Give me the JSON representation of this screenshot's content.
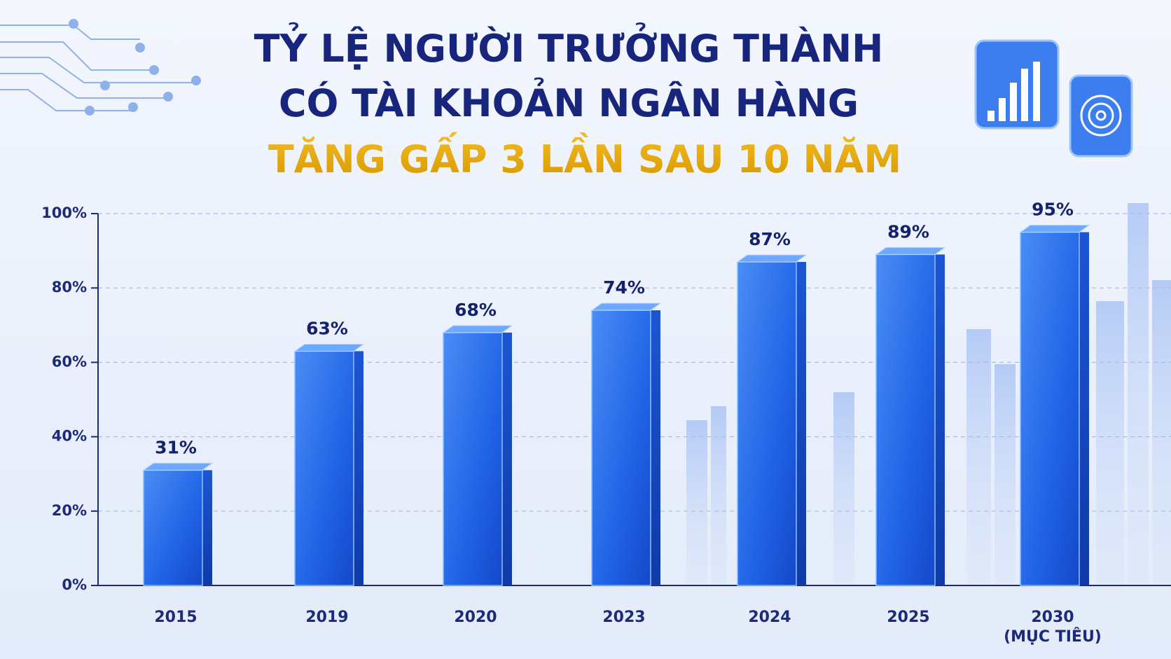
{
  "chart_data": {
    "type": "bar",
    "title": [
      "TỶ LỆ NGƯỜI TRƯỞNG THÀNH",
      "CÓ TÀI KHOẢN NGÂN HÀNG"
    ],
    "subtitle": "TĂNG GẤP 3 LẦN SAU 10 NĂM",
    "categories": [
      "2015",
      "2019",
      "2020",
      "2023",
      "2024",
      "2025",
      "2030\n(MỤC TIÊU)"
    ],
    "values": [
      31,
      63,
      68,
      74,
      87,
      89,
      95
    ],
    "value_labels": [
      "31%",
      "63%",
      "68%",
      "74%",
      "87%",
      "89%",
      "95%"
    ],
    "color": "#2163e6",
    "ylim": [
      0,
      100
    ],
    "yticks": [
      {
        "value": 0,
        "label": "0%"
      },
      {
        "value": 20,
        "label": "20%"
      },
      {
        "value": 40,
        "label": "40%"
      },
      {
        "value": 60,
        "label": "60%"
      },
      {
        "value": 80,
        "label": "80%"
      },
      {
        "value": 100,
        "label": "100%"
      }
    ],
    "grid": true
  }
}
